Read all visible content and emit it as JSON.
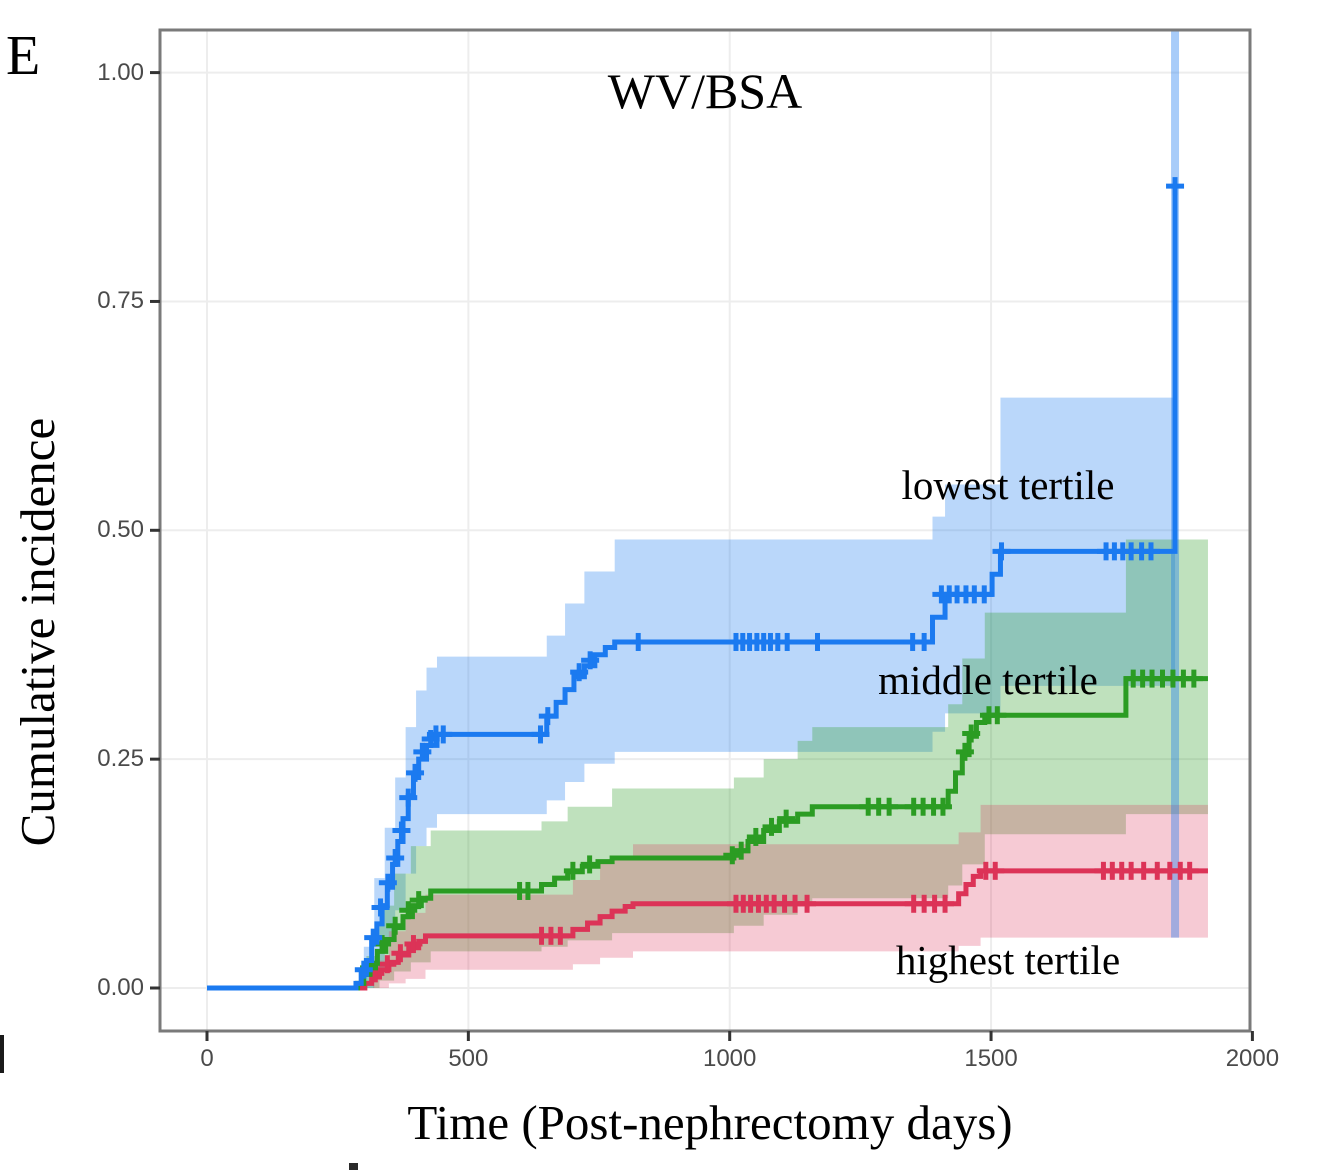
{
  "panel_label": "E",
  "title": "WV/BSA",
  "axes": {
    "x_label": "Time (Post-nephrectomy days)",
    "y_label": "Cumulative incidence",
    "x_ticks": [
      {
        "label": "0",
        "t": 0
      },
      {
        "label": "500",
        "t": 500
      },
      {
        "label": "1000",
        "t": 1000
      },
      {
        "label": "1500",
        "t": 1500
      },
      {
        "label": "2000",
        "t": 2000
      }
    ],
    "y_ticks": [
      {
        "label": "0.00",
        "v": 0
      },
      {
        "label": "0.25",
        "v": 0.25
      },
      {
        "label": "0.50",
        "v": 0.5
      },
      {
        "label": "0.75",
        "v": 0.75
      },
      {
        "label": "1.00",
        "v": 1.0
      }
    ]
  },
  "colors": {
    "blue_line": "#1b7af0",
    "green_line": "#2b9c23",
    "red_line": "#dc3357",
    "blue_band": "rgba(27,122,240,0.30)",
    "green_band": "rgba(43,156,35,0.30)",
    "red_band": "rgba(220,51,87,0.26)",
    "grid": "#ededed",
    "panel_border": "#7a7a7a",
    "tick_mark": "#333333",
    "tick_text": "#4a4a4a"
  },
  "chart_data": {
    "type": "line",
    "subtype": "cumulative-incidence-step-curves-with-ci-and-censoring",
    "title": "WV/BSA",
    "xlabel": "Time (Post-nephrectomy days)",
    "ylabel": "Cumulative incidence",
    "xlim": [
      -90,
      2010
    ],
    "ylim": [
      -0.05,
      1.05
    ],
    "grid": "major-only",
    "legend_position": "in-plot-text-annotations",
    "annotations": [
      {
        "label": "lowest tertile",
        "x_day": 1540,
        "y_value": 0.545
      },
      {
        "label": "middle tertile",
        "x_day": 1500,
        "y_value": 0.33
      },
      {
        "label": "highest tertile",
        "x_day": 1540,
        "y_value": 0.026
      }
    ],
    "series": [
      {
        "name": "lowest tertile",
        "steps": [
          [
            0,
            0
          ],
          [
            285,
            0.005
          ],
          [
            295,
            0.015
          ],
          [
            305,
            0.03
          ],
          [
            315,
            0.05
          ],
          [
            325,
            0.07
          ],
          [
            335,
            0.09
          ],
          [
            345,
            0.11
          ],
          [
            355,
            0.135
          ],
          [
            365,
            0.16
          ],
          [
            375,
            0.185
          ],
          [
            385,
            0.21
          ],
          [
            395,
            0.23
          ],
          [
            405,
            0.25
          ],
          [
            420,
            0.265
          ],
          [
            440,
            0.277
          ],
          [
            650,
            0.297
          ],
          [
            668,
            0.312
          ],
          [
            685,
            0.326
          ],
          [
            702,
            0.34
          ],
          [
            722,
            0.352
          ],
          [
            742,
            0.364
          ],
          [
            762,
            0.372
          ],
          [
            780,
            0.378
          ],
          [
            1388,
            0.405
          ],
          [
            1412,
            0.43
          ],
          [
            1502,
            0.452
          ],
          [
            1518,
            0.477
          ],
          [
            1852,
            0.876
          ]
        ],
        "censors": [
          [
            300,
            0.02
          ],
          [
            318,
            0.055
          ],
          [
            332,
            0.088
          ],
          [
            346,
            0.115
          ],
          [
            360,
            0.142
          ],
          [
            372,
            0.172
          ],
          [
            385,
            0.208
          ],
          [
            398,
            0.235
          ],
          [
            412,
            0.258
          ],
          [
            428,
            0.272
          ],
          [
            438,
            0.277
          ],
          [
            452,
            0.277
          ],
          [
            638,
            0.277
          ],
          [
            652,
            0.297
          ],
          [
            712,
            0.345
          ],
          [
            733,
            0.358
          ],
          [
            825,
            0.378
          ],
          [
            1012,
            0.378
          ],
          [
            1025,
            0.378
          ],
          [
            1038,
            0.378
          ],
          [
            1052,
            0.378
          ],
          [
            1065,
            0.378
          ],
          [
            1078,
            0.378
          ],
          [
            1092,
            0.378
          ],
          [
            1110,
            0.378
          ],
          [
            1168,
            0.378
          ],
          [
            1350,
            0.378
          ],
          [
            1372,
            0.378
          ],
          [
            1405,
            0.43
          ],
          [
            1420,
            0.43
          ],
          [
            1435,
            0.43
          ],
          [
            1452,
            0.43
          ],
          [
            1468,
            0.43
          ],
          [
            1487,
            0.43
          ],
          [
            1520,
            0.477
          ],
          [
            1720,
            0.477
          ],
          [
            1736,
            0.477
          ],
          [
            1752,
            0.477
          ],
          [
            1768,
            0.477
          ],
          [
            1788,
            0.477
          ],
          [
            1806,
            0.477
          ],
          [
            1852,
            0.876
          ]
        ],
        "ci": [
          [
            282,
            0,
            0
          ],
          [
            300,
            0,
            0.045
          ],
          [
            320,
            0.02,
            0.12
          ],
          [
            340,
            0.05,
            0.175
          ],
          [
            360,
            0.085,
            0.23
          ],
          [
            380,
            0.125,
            0.285
          ],
          [
            400,
            0.155,
            0.325
          ],
          [
            420,
            0.175,
            0.35
          ],
          [
            440,
            0.19,
            0.362
          ],
          [
            650,
            0.205,
            0.385
          ],
          [
            685,
            0.225,
            0.42
          ],
          [
            722,
            0.245,
            0.455
          ],
          [
            780,
            0.258,
            0.49
          ],
          [
            1388,
            0.28,
            0.515
          ],
          [
            1412,
            0.3,
            0.55
          ],
          [
            1518,
            0.33,
            0.645
          ],
          [
            1852,
            0.33,
            0.645
          ]
        ],
        "terminal_ci": {
          "t": 1852,
          "lo": 0.055,
          "hi": 1.06
        }
      },
      {
        "name": "middle tertile",
        "steps": [
          [
            0,
            0
          ],
          [
            288,
            0.005
          ],
          [
            300,
            0.015
          ],
          [
            312,
            0.027
          ],
          [
            326,
            0.04
          ],
          [
            342,
            0.053
          ],
          [
            358,
            0.066
          ],
          [
            375,
            0.078
          ],
          [
            393,
            0.09
          ],
          [
            410,
            0.098
          ],
          [
            428,
            0.106
          ],
          [
            640,
            0.113
          ],
          [
            665,
            0.12
          ],
          [
            690,
            0.127
          ],
          [
            718,
            0.133
          ],
          [
            748,
            0.138
          ],
          [
            775,
            0.142
          ],
          [
            1008,
            0.15
          ],
          [
            1035,
            0.16
          ],
          [
            1065,
            0.172
          ],
          [
            1095,
            0.182
          ],
          [
            1130,
            0.19
          ],
          [
            1158,
            0.198
          ],
          [
            1418,
            0.215
          ],
          [
            1432,
            0.235
          ],
          [
            1445,
            0.255
          ],
          [
            1458,
            0.275
          ],
          [
            1472,
            0.29
          ],
          [
            1488,
            0.298
          ],
          [
            1758,
            0.338
          ],
          [
            1915,
            0.338
          ]
        ],
        "censors": [
          [
            310,
            0.022
          ],
          [
            335,
            0.048
          ],
          [
            360,
            0.068
          ],
          [
            385,
            0.085
          ],
          [
            405,
            0.096
          ],
          [
            598,
            0.106
          ],
          [
            614,
            0.106
          ],
          [
            700,
            0.128
          ],
          [
            732,
            0.135
          ],
          [
            1005,
            0.145
          ],
          [
            1022,
            0.15
          ],
          [
            1050,
            0.165
          ],
          [
            1080,
            0.176
          ],
          [
            1108,
            0.185
          ],
          [
            1265,
            0.198
          ],
          [
            1285,
            0.198
          ],
          [
            1305,
            0.198
          ],
          [
            1352,
            0.198
          ],
          [
            1370,
            0.198
          ],
          [
            1390,
            0.198
          ],
          [
            1408,
            0.198
          ],
          [
            1450,
            0.258
          ],
          [
            1462,
            0.278
          ],
          [
            1496,
            0.298
          ],
          [
            1512,
            0.298
          ],
          [
            1772,
            0.338
          ],
          [
            1790,
            0.338
          ],
          [
            1808,
            0.338
          ],
          [
            1828,
            0.338
          ],
          [
            1848,
            0.338
          ],
          [
            1868,
            0.338
          ],
          [
            1888,
            0.338
          ]
        ],
        "ci": [
          [
            285,
            0,
            0
          ],
          [
            305,
            0,
            0.035
          ],
          [
            330,
            0.008,
            0.09
          ],
          [
            358,
            0.018,
            0.125
          ],
          [
            390,
            0.028,
            0.155
          ],
          [
            428,
            0.04,
            0.172
          ],
          [
            640,
            0.045,
            0.182
          ],
          [
            690,
            0.052,
            0.198
          ],
          [
            775,
            0.06,
            0.218
          ],
          [
            1008,
            0.068,
            0.23
          ],
          [
            1065,
            0.08,
            0.25
          ],
          [
            1130,
            0.09,
            0.27
          ],
          [
            1158,
            0.098,
            0.285
          ],
          [
            1418,
            0.112,
            0.31
          ],
          [
            1445,
            0.135,
            0.36
          ],
          [
            1488,
            0.168,
            0.41
          ],
          [
            1758,
            0.19,
            0.49
          ],
          [
            1915,
            0.19,
            0.49
          ]
        ],
        "terminal_ci": null
      },
      {
        "name": "highest tertile",
        "steps": [
          [
            0,
            0
          ],
          [
            302,
            0.005
          ],
          [
            315,
            0.012
          ],
          [
            330,
            0.02
          ],
          [
            348,
            0.028
          ],
          [
            366,
            0.036
          ],
          [
            386,
            0.044
          ],
          [
            405,
            0.051
          ],
          [
            418,
            0.057
          ],
          [
            700,
            0.064
          ],
          [
            728,
            0.071
          ],
          [
            752,
            0.078
          ],
          [
            775,
            0.084
          ],
          [
            800,
            0.089
          ],
          [
            815,
            0.092
          ],
          [
            1438,
            0.103
          ],
          [
            1452,
            0.113
          ],
          [
            1466,
            0.122
          ],
          [
            1480,
            0.128
          ],
          [
            1915,
            0.128
          ]
        ],
        "censors": [
          [
            322,
            0.016
          ],
          [
            345,
            0.026
          ],
          [
            370,
            0.038
          ],
          [
            395,
            0.048
          ],
          [
            640,
            0.057
          ],
          [
            658,
            0.057
          ],
          [
            676,
            0.057
          ],
          [
            1012,
            0.092
          ],
          [
            1026,
            0.092
          ],
          [
            1040,
            0.092
          ],
          [
            1055,
            0.092
          ],
          [
            1070,
            0.092
          ],
          [
            1085,
            0.092
          ],
          [
            1105,
            0.092
          ],
          [
            1125,
            0.092
          ],
          [
            1148,
            0.092
          ],
          [
            1352,
            0.092
          ],
          [
            1372,
            0.092
          ],
          [
            1392,
            0.092
          ],
          [
            1412,
            0.092
          ],
          [
            1490,
            0.128
          ],
          [
            1508,
            0.128
          ],
          [
            1715,
            0.128
          ],
          [
            1732,
            0.128
          ],
          [
            1750,
            0.128
          ],
          [
            1768,
            0.128
          ],
          [
            1792,
            0.128
          ],
          [
            1818,
            0.128
          ],
          [
            1842,
            0.128
          ],
          [
            1862,
            0.128
          ],
          [
            1880,
            0.128
          ]
        ],
        "ci": [
          [
            298,
            0,
            0
          ],
          [
            318,
            0,
            0.03
          ],
          [
            348,
            0.005,
            0.062
          ],
          [
            380,
            0.01,
            0.082
          ],
          [
            418,
            0.02,
            0.102
          ],
          [
            700,
            0.026,
            0.118
          ],
          [
            752,
            0.033,
            0.14
          ],
          [
            815,
            0.04,
            0.157
          ],
          [
            1438,
            0.046,
            0.17
          ],
          [
            1480,
            0.055,
            0.2
          ],
          [
            1915,
            0.055,
            0.2
          ]
        ],
        "terminal_ci": null
      }
    ]
  }
}
